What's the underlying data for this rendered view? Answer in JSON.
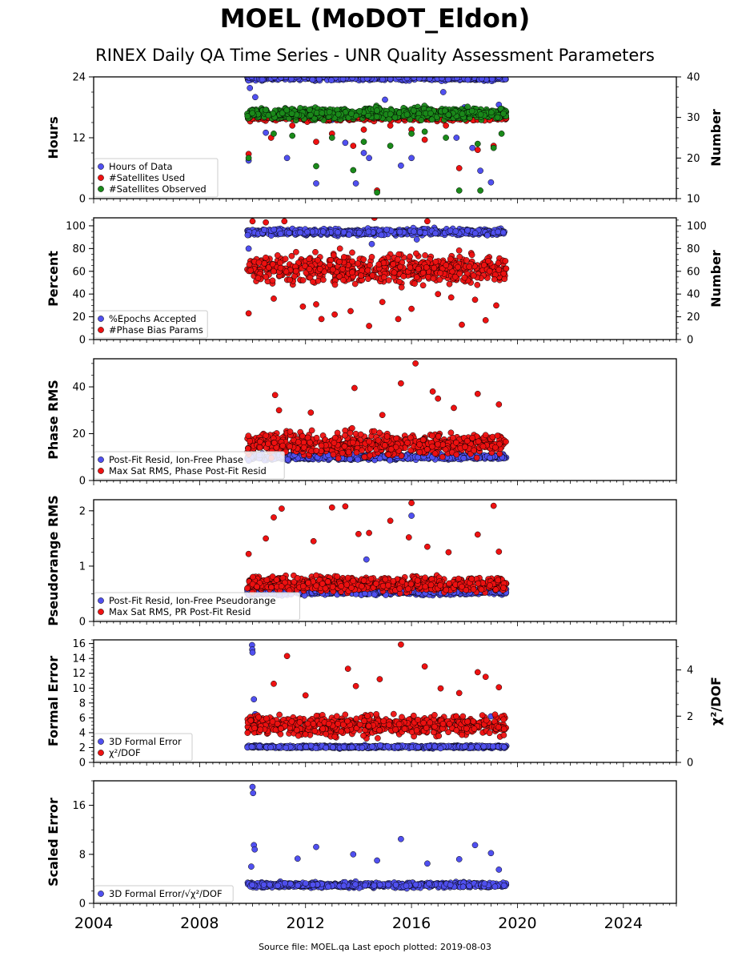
{
  "figure": {
    "title": "MOEL (MoDOT_Eldon)",
    "subtitle": "RINEX Daily QA Time Series - UNR Quality Assessment Parameters",
    "footer": "Source file: MOEL.qa Last epoch plotted: 2019-08-03"
  },
  "colors": {
    "blue": "#5050f0",
    "red": "#ee1111",
    "green": "#1a8a1a",
    "edge": "#000000"
  },
  "chart_data": [
    {
      "type": "scatter",
      "ylabel": "Hours",
      "ylabel_right": "Number",
      "xlim": [
        2004,
        2026
      ],
      "x_ticks": [
        2004,
        2008,
        2012,
        2016,
        2020,
        2024
      ],
      "ylim": [
        0,
        24
      ],
      "y_ticks": [
        0,
        12,
        24
      ],
      "y2lim": [
        10,
        40
      ],
      "y2_ticks": [
        10,
        20,
        30,
        40
      ],
      "legend_position": "lower-left",
      "series": [
        {
          "name": "Hours of Data",
          "color": "blue",
          "axis": "left",
          "x_range": [
            2009.8,
            2019.58
          ],
          "typical": 23.8,
          "spread": 0.4,
          "outliers": [
            [
              2009.85,
              7.5
            ],
            [
              2009.9,
              21.8
            ],
            [
              2010.1,
              20
            ],
            [
              2010.5,
              13
            ],
            [
              2011.3,
              8
            ],
            [
              2011.8,
              16
            ],
            [
              2012.4,
              3
            ],
            [
              2013.0,
              15.5
            ],
            [
              2013.5,
              11
            ],
            [
              2013.9,
              3
            ],
            [
              2014.2,
              9
            ],
            [
              2014.4,
              8
            ],
            [
              2015.0,
              19.5
            ],
            [
              2015.6,
              6.5
            ],
            [
              2016.0,
              8
            ],
            [
              2016.6,
              17.5
            ],
            [
              2017.2,
              21
            ],
            [
              2017.7,
              12
            ],
            [
              2018.0,
              18
            ],
            [
              2018.3,
              10
            ],
            [
              2018.6,
              5.5
            ],
            [
              2019.0,
              3.2
            ],
            [
              2019.3,
              18.5
            ]
          ]
        },
        {
          "name": "#Satellites Used",
          "color": "red",
          "axis": "right",
          "x_range": [
            2009.8,
            2019.58
          ],
          "typical": 30.2,
          "spread": 0.8,
          "outliers": [
            [
              2009.85,
              21
            ],
            [
              2010.7,
              25
            ],
            [
              2011.5,
              28
            ],
            [
              2012.4,
              24
            ],
            [
              2013.0,
              26
            ],
            [
              2013.8,
              23
            ],
            [
              2014.2,
              27
            ],
            [
              2014.7,
              12
            ],
            [
              2015.2,
              28
            ],
            [
              2016.0,
              27
            ],
            [
              2016.5,
              24.5
            ],
            [
              2017.3,
              28
            ],
            [
              2017.8,
              17.5
            ],
            [
              2018.5,
              22
            ],
            [
              2019.1,
              23
            ]
          ]
        },
        {
          "name": "#Satellites Observed",
          "color": "green",
          "axis": "right",
          "x_range": [
            2009.8,
            2019.58
          ],
          "typical": 31,
          "spread": 1.1,
          "outliers": [
            [
              2009.85,
              20
            ],
            [
              2010.8,
              26
            ],
            [
              2011.5,
              25.5
            ],
            [
              2012.4,
              18
            ],
            [
              2013.0,
              25
            ],
            [
              2013.8,
              17
            ],
            [
              2014.2,
              24
            ],
            [
              2014.7,
              11.5
            ],
            [
              2015.2,
              23
            ],
            [
              2016.0,
              26
            ],
            [
              2016.5,
              26.5
            ],
            [
              2017.3,
              25
            ],
            [
              2017.8,
              12
            ],
            [
              2018.5,
              23.5
            ],
            [
              2018.6,
              12
            ],
            [
              2019.1,
              22.5
            ],
            [
              2019.4,
              26
            ]
          ]
        }
      ]
    },
    {
      "type": "scatter",
      "ylabel": "Percent",
      "ylabel_right": "Number",
      "xlim": [
        2004,
        2026
      ],
      "ylim": [
        0,
        107
      ],
      "y_ticks": [
        0,
        20,
        40,
        60,
        80,
        100
      ],
      "y2lim": [
        0,
        107
      ],
      "y2_ticks": [
        0,
        20,
        40,
        60,
        80,
        100
      ],
      "legend_position": "lower-left",
      "series": [
        {
          "name": "%Epochs Accepted",
          "color": "blue",
          "axis": "left",
          "x_range": [
            2009.8,
            2019.58
          ],
          "typical": 94.5,
          "spread": 2.2,
          "outliers": [
            [
              2009.85,
              80
            ],
            [
              2014.5,
              84
            ],
            [
              2016.2,
              88
            ]
          ]
        },
        {
          "name": "#Phase Bias Params",
          "color": "red",
          "axis": "right",
          "x_range": [
            2009.8,
            2019.58
          ],
          "typical": 62,
          "spread": 10,
          "outliers": [
            [
              2009.85,
              23
            ],
            [
              2010.0,
              104
            ],
            [
              2010.5,
              103
            ],
            [
              2010.8,
              36
            ],
            [
              2011.2,
              104
            ],
            [
              2011.9,
              29
            ],
            [
              2012.4,
              31
            ],
            [
              2012.6,
              18
            ],
            [
              2013.1,
              22
            ],
            [
              2013.7,
              25
            ],
            [
              2014.4,
              12
            ],
            [
              2014.6,
              107
            ],
            [
              2014.9,
              33
            ],
            [
              2015.5,
              18
            ],
            [
              2016.0,
              27
            ],
            [
              2016.6,
              104
            ],
            [
              2017.0,
              40
            ],
            [
              2017.5,
              37
            ],
            [
              2017.9,
              13
            ],
            [
              2018.4,
              35
            ],
            [
              2018.8,
              17
            ],
            [
              2019.2,
              30
            ]
          ]
        }
      ]
    },
    {
      "type": "scatter",
      "ylabel": "Phase RMS",
      "xlim": [
        2004,
        2026
      ],
      "ylim": [
        0,
        52
      ],
      "y_ticks": [
        0,
        20,
        40
      ],
      "legend_position": "lower-left",
      "series": [
        {
          "name": "Post-Fit Resid, Ion-Free Phase",
          "color": "blue",
          "axis": "left",
          "x_range": [
            2009.8,
            2019.58
          ],
          "typical": 10,
          "spread": 0.9,
          "outliers": [
            [
              2009.85,
              8.5
            ]
          ]
        },
        {
          "name": "Max Sat RMS, Phase Post-Fit Resid",
          "color": "red",
          "axis": "left",
          "x_range": [
            2009.8,
            2019.58
          ],
          "typical": 15.5,
          "spread": 4,
          "outliers": [
            [
              2010.85,
              36.5
            ],
            [
              2013.85,
              39.5
            ],
            [
              2015.6,
              41.5
            ],
            [
              2016.15,
              50
            ],
            [
              2016.8,
              38
            ],
            [
              2017.0,
              35
            ],
            [
              2018.5,
              37
            ],
            [
              2019.3,
              32.5
            ],
            [
              2011.0,
              30
            ],
            [
              2012.2,
              29
            ],
            [
              2014.9,
              28
            ],
            [
              2017.6,
              31
            ]
          ]
        }
      ]
    },
    {
      "type": "scatter",
      "ylabel": "Pseudorange RMS",
      "xlim": [
        2004,
        2026
      ],
      "ylim": [
        0,
        2.2
      ],
      "y_ticks": [
        0,
        1,
        2
      ],
      "legend_position": "lower-left",
      "series": [
        {
          "name": "Post-Fit Resid, Ion-Free Pseudorange",
          "color": "blue",
          "axis": "left",
          "x_range": [
            2009.8,
            2019.58
          ],
          "typical": 0.53,
          "spread": 0.04,
          "outliers": [
            [
              2014.3,
              1.12
            ],
            [
              2016.0,
              1.91
            ],
            [
              2009.85,
              0.48
            ]
          ]
        },
        {
          "name": "Max Sat RMS, PR Post-Fit Resid",
          "color": "red",
          "axis": "left",
          "x_range": [
            2009.8,
            2019.58
          ],
          "typical": 0.68,
          "spread": 0.11,
          "outliers": [
            [
              2009.85,
              1.22
            ],
            [
              2010.8,
              1.88
            ],
            [
              2011.1,
              2.04
            ],
            [
              2010.5,
              1.5
            ],
            [
              2012.3,
              1.45
            ],
            [
              2013.0,
              2.06
            ],
            [
              2013.5,
              2.08
            ],
            [
              2014.0,
              1.58
            ],
            [
              2014.4,
              1.6
            ],
            [
              2015.2,
              1.82
            ],
            [
              2015.9,
              1.52
            ],
            [
              2016.0,
              2.14
            ],
            [
              2016.6,
              1.35
            ],
            [
              2017.4,
              1.25
            ],
            [
              2018.5,
              1.57
            ],
            [
              2019.1,
              2.09
            ],
            [
              2019.3,
              1.26
            ]
          ]
        }
      ]
    },
    {
      "type": "scatter",
      "ylabel": "Formal Error",
      "ylabel_right": "χ²/DOF",
      "xlim": [
        2004,
        2026
      ],
      "ylim": [
        0,
        16.5
      ],
      "y_ticks": [
        0,
        2,
        4,
        6,
        8,
        10,
        12,
        14,
        16
      ],
      "y2lim": [
        0,
        5.3
      ],
      "y2_ticks": [
        0,
        2,
        4
      ],
      "legend_position": "lower-left",
      "series": [
        {
          "name": "3D Formal Error",
          "color": "blue",
          "axis": "left",
          "x_range": [
            2009.8,
            2019.58
          ],
          "typical": 2.1,
          "spread": 0.15,
          "outliers": [
            [
              2009.98,
              15.8
            ],
            [
              2009.99,
              15.2
            ],
            [
              2010.0,
              14.8
            ],
            [
              2010.05,
              8.5
            ],
            [
              2010.1,
              6.5
            ],
            [
              2015.6,
              4.5
            ],
            [
              2019.0,
              6.2
            ]
          ]
        },
        {
          "name": "χ²/DOF",
          "color": "red",
          "axis": "right",
          "x_range": [
            2009.8,
            2019.58
          ],
          "typical": 1.6,
          "spread": 0.35,
          "outliers": [
            [
              2011.3,
              4.6
            ],
            [
              2013.6,
              4.05
            ],
            [
              2014.8,
              3.6
            ],
            [
              2015.6,
              5.1
            ],
            [
              2016.5,
              4.15
            ],
            [
              2018.5,
              3.9
            ],
            [
              2018.8,
              3.7
            ],
            [
              2019.3,
              3.25
            ],
            [
              2010.8,
              3.4
            ],
            [
              2012.0,
              2.9
            ],
            [
              2013.9,
              3.3
            ],
            [
              2017.1,
              3.2
            ],
            [
              2017.8,
              3.0
            ]
          ]
        }
      ]
    },
    {
      "type": "scatter",
      "ylabel": "Scaled Error",
      "xlim": [
        2004,
        2026
      ],
      "ylim": [
        0,
        20
      ],
      "y_ticks": [
        0,
        8,
        16
      ],
      "legend_position": "lower-left",
      "series": [
        {
          "name": "3D Formal Error/√χ²/DOF",
          "color": "blue",
          "axis": "left",
          "x_range": [
            2009.8,
            2019.58
          ],
          "typical": 3.0,
          "spread": 0.35,
          "outliers": [
            [
              2010.0,
              19
            ],
            [
              2010.02,
              18
            ],
            [
              2010.05,
              9.5
            ],
            [
              2010.08,
              8.8
            ],
            [
              2009.95,
              6
            ],
            [
              2011.7,
              7.3
            ],
            [
              2012.4,
              9.2
            ],
            [
              2013.8,
              8
            ],
            [
              2014.7,
              7
            ],
            [
              2015.6,
              10.5
            ],
            [
              2016.6,
              6.5
            ],
            [
              2017.8,
              7.2
            ],
            [
              2018.4,
              9.5
            ],
            [
              2019.0,
              8.2
            ],
            [
              2019.3,
              5.5
            ]
          ]
        }
      ]
    }
  ]
}
